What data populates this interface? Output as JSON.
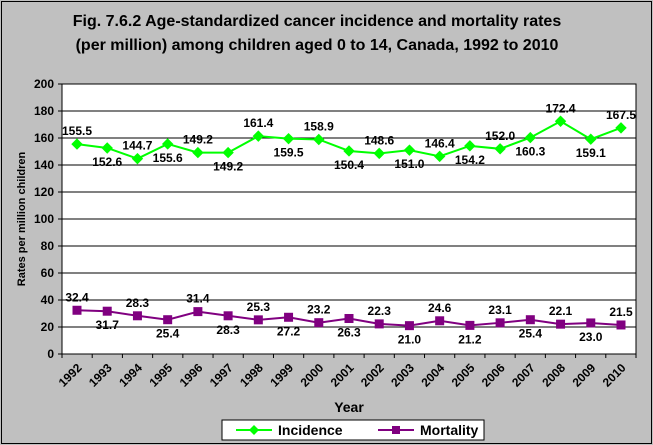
{
  "chart_data": {
    "type": "line",
    "title_lines": [
      "Fig. 7.6.2 Age-standardized cancer incidence and mortality rates",
      "(per million) among children aged 0 to 14, Canada, 1992 to 2010"
    ],
    "xlabel": "Year",
    "ylabel": "Rates per million children",
    "ylim": [
      0,
      200
    ],
    "yticks": [
      "0",
      "20",
      "40",
      "60",
      "80",
      "100",
      "120",
      "140",
      "160",
      "180",
      "200"
    ],
    "categories": [
      "1992",
      "1993",
      "1994",
      "1995",
      "1996",
      "1997",
      "1998",
      "1999",
      "2000",
      "2001",
      "2002",
      "2003",
      "2004",
      "2005",
      "2006",
      "2007",
      "2008",
      "2009",
      "2010"
    ],
    "grid": "horizontal",
    "legend_position": "bottom",
    "series": [
      {
        "name": "Incidence",
        "color": "#00ff00",
        "marker": "diamond",
        "values": [
          155.5,
          152.6,
          144.7,
          155.6,
          149.2,
          149.2,
          161.4,
          159.5,
          158.9,
          150.4,
          148.6,
          151.0,
          146.4,
          154.2,
          152.0,
          160.3,
          172.4,
          159.1,
          167.5
        ],
        "labels": [
          "155.5",
          "152.6",
          "144.7",
          "155.6",
          "149.2",
          "149.2",
          "161.4",
          "159.5",
          "158.9",
          "150.4",
          "148.6",
          "151.0",
          "146.4",
          "154.2",
          "152.0",
          "160.3",
          "172.4",
          "159.1",
          "167.5"
        ]
      },
      {
        "name": "Mortality",
        "color": "#800080",
        "marker": "square",
        "values": [
          32.4,
          31.7,
          28.3,
          25.4,
          31.4,
          28.3,
          25.3,
          27.2,
          23.2,
          26.3,
          22.3,
          21.0,
          24.6,
          21.2,
          23.1,
          25.4,
          22.1,
          23.0,
          21.5
        ],
        "labels": [
          "32.4",
          "31.7",
          "28.3",
          "25.4",
          "31.4",
          "28.3",
          "25.3",
          "27.2",
          "23.2",
          "26.3",
          "22.3",
          "21.0",
          "24.6",
          "21.2",
          "23.1",
          "25.4",
          "22.1",
          "23.0",
          "21.5"
        ]
      }
    ]
  },
  "colors": {
    "background": "#c0c0c0",
    "plot_area": "#ffffff",
    "gridline": "#000000"
  }
}
